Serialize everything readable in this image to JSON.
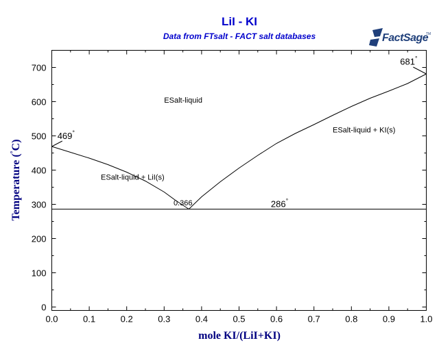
{
  "chart_data": {
    "type": "line",
    "title": "LiI - KI",
    "subtitle": "Data from FTsalt - FACT salt databases",
    "logo": "FactSage",
    "logo_tm": "TM",
    "xlabel": "mole KI/(LiI+KI)",
    "ylabel": "Temperature",
    "ylabel_unit": "C",
    "ylabel_parens": [
      "(",
      ")"
    ],
    "xlim": [
      0,
      1
    ],
    "ylim": [
      -10,
      750
    ],
    "xticks": [
      "0.0",
      "0.1",
      "0.2",
      "0.3",
      "0.4",
      "0.5",
      "0.6",
      "0.7",
      "0.8",
      "0.9",
      "1.0"
    ],
    "yticks": [
      "0",
      "100",
      "200",
      "300",
      "400",
      "500",
      "600",
      "700"
    ],
    "grid": false,
    "colors": {
      "title": "#0000CC",
      "axis_label": "#000080",
      "line": "#000000"
    },
    "series": [
      {
        "x": [
          0,
          0.05,
          0.1,
          0.15,
          0.2,
          0.25,
          0.3,
          0.33,
          0.366
        ],
        "y": [
          469,
          452,
          435,
          416,
          394,
          368,
          336,
          312,
          286
        ]
      },
      {
        "x": [
          0.366,
          0.4,
          0.45,
          0.5,
          0.55,
          0.6,
          0.65,
          0.7,
          0.75,
          0.8,
          0.85,
          0.9,
          0.95,
          1.0
        ],
        "y": [
          286,
          322,
          366,
          406,
          443,
          478,
          507,
          533,
          560,
          586,
          610,
          631,
          653,
          681
        ]
      },
      {
        "x": [
          0,
          1
        ],
        "y": [
          286,
          286
        ]
      },
      {
        "x": [
          0.965,
          1.0
        ],
        "y": [
          701,
          681
        ]
      },
      {
        "x": [
          0.0,
          0.028
        ],
        "y": [
          469,
          485
        ]
      }
    ],
    "annotations": [
      {
        "text": "469",
        "degree": true,
        "x": 0.015,
        "y": 491
      },
      {
        "text": "681",
        "degree": true,
        "x": 0.93,
        "y": 708
      },
      {
        "text": "0.366",
        "degree": false,
        "x": 0.325,
        "y": 297
      },
      {
        "text": "286",
        "degree": true,
        "x": 0.585,
        "y": 292
      }
    ],
    "region_labels": [
      {
        "text": "ESalt-liquid",
        "x": 0.3,
        "y": 597
      },
      {
        "text": "ESalt-liquid + LiI(s)",
        "x": 0.131,
        "y": 372
      },
      {
        "text": "ESalt-liquid + KI(s)",
        "x": 0.75,
        "y": 510
      }
    ]
  }
}
